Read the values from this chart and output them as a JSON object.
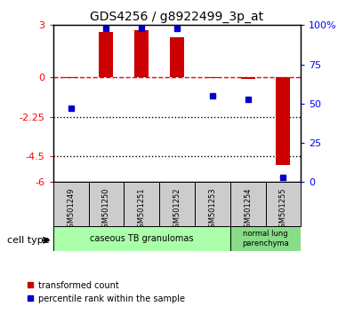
{
  "title": "GDS4256 / g8922499_3p_at",
  "samples": [
    "GSM501249",
    "GSM501250",
    "GSM501251",
    "GSM501252",
    "GSM501253",
    "GSM501254",
    "GSM501255"
  ],
  "transformed_count": [
    -0.05,
    2.6,
    2.7,
    2.3,
    -0.05,
    -0.1,
    -5.0
  ],
  "percentile_rank": [
    47,
    98,
    98,
    98,
    55,
    53,
    3
  ],
  "ylim_left": [
    -6,
    3
  ],
  "ylim_right": [
    0,
    100
  ],
  "yticks_left": [
    3,
    0,
    -2.25,
    -4.5,
    -6
  ],
  "yticks_left_labels": [
    "3",
    "0",
    "-2.25",
    "-4.5",
    "-6"
  ],
  "yticks_right": [
    100,
    75,
    50,
    25,
    0
  ],
  "yticks_right_labels": [
    "100%",
    "75",
    "50",
    "25",
    "0"
  ],
  "dotted_lines": [
    -2.25,
    -4.5
  ],
  "bar_color": "#cc0000",
  "dot_color": "#0000cc",
  "bar_width": 0.4,
  "group1_count": 5,
  "group1_label": "caseous TB granulomas",
  "group2_count": 2,
  "group2_label": "normal lung\nparenchyma",
  "group1_color": "#aaffaa",
  "group2_color": "#88dd88",
  "sample_box_color": "#cccccc",
  "cell_type_label": "cell type",
  "legend_bar_label": "transformed count",
  "legend_dot_label": "percentile rank within the sample"
}
